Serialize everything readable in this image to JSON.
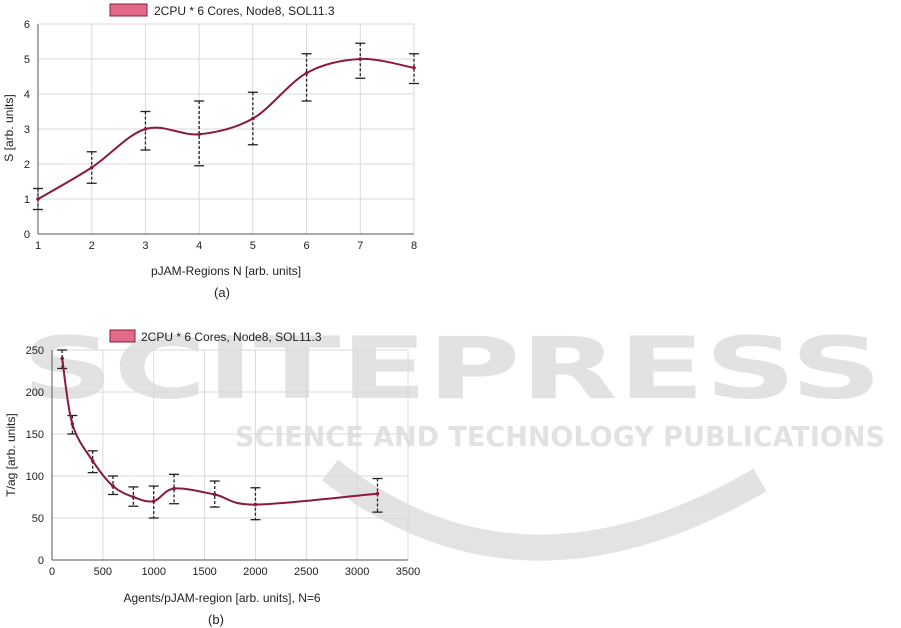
{
  "watermark": {
    "title": "SCITEPRESS",
    "subtitle": "SCIENCE AND TECHNOLOGY PUBLICATIONS"
  },
  "chart_data": [
    {
      "type": "line",
      "caption": "(a)",
      "legend": "top-center",
      "grid": true,
      "xlabel": "pJAM-Regions N [arb. units]",
      "ylabel": "S [arb. units]",
      "xlim": [
        1,
        8
      ],
      "ylim": [
        0,
        6
      ],
      "xticks": [
        1,
        2,
        3,
        4,
        5,
        6,
        7,
        8
      ],
      "yticks": [
        0,
        1,
        2,
        3,
        4,
        5,
        6
      ],
      "series": [
        {
          "name": "2CPU * 6 Cores, Node8, SOL11.3",
          "color": "#8b1a3c",
          "legend_fill": "#e06a87",
          "x": [
            1,
            2,
            3,
            4,
            5,
            6,
            7,
            8
          ],
          "y": [
            1.0,
            1.9,
            3.0,
            2.85,
            3.3,
            4.6,
            5.0,
            4.75
          ],
          "error_low": [
            0.7,
            1.45,
            2.4,
            1.95,
            2.55,
            3.8,
            4.45,
            4.3
          ],
          "error_high": [
            1.3,
            2.35,
            3.5,
            3.8,
            4.05,
            5.15,
            5.45,
            5.15
          ]
        }
      ]
    },
    {
      "type": "line",
      "caption": "(b)",
      "legend": "top-center",
      "grid": true,
      "xlabel": "Agents/pJAM-region [arb. units], N=6",
      "ylabel": "T/ag [arb. units]",
      "xlim": [
        0,
        3500
      ],
      "ylim": [
        0,
        250
      ],
      "xticks": [
        0,
        500,
        1000,
        1500,
        2000,
        2500,
        3000,
        3500
      ],
      "yticks": [
        0,
        50,
        100,
        150,
        200,
        250
      ],
      "series": [
        {
          "name": "2CPU * 6 Cores, Node8, SOL11.3",
          "color": "#8b1a3c",
          "legend_fill": "#e06a87",
          "x": [
            100,
            200,
            400,
            600,
            800,
            1000,
            1200,
            1600,
            2000,
            3200
          ],
          "y": [
            240,
            162,
            118,
            88,
            75,
            70,
            85,
            78,
            66,
            79
          ],
          "error_low": [
            228,
            150,
            104,
            78,
            64,
            50,
            67,
            63,
            48,
            57
          ],
          "error_high": [
            250,
            172,
            130,
            100,
            87,
            88,
            102,
            94,
            86,
            97
          ]
        }
      ]
    }
  ]
}
